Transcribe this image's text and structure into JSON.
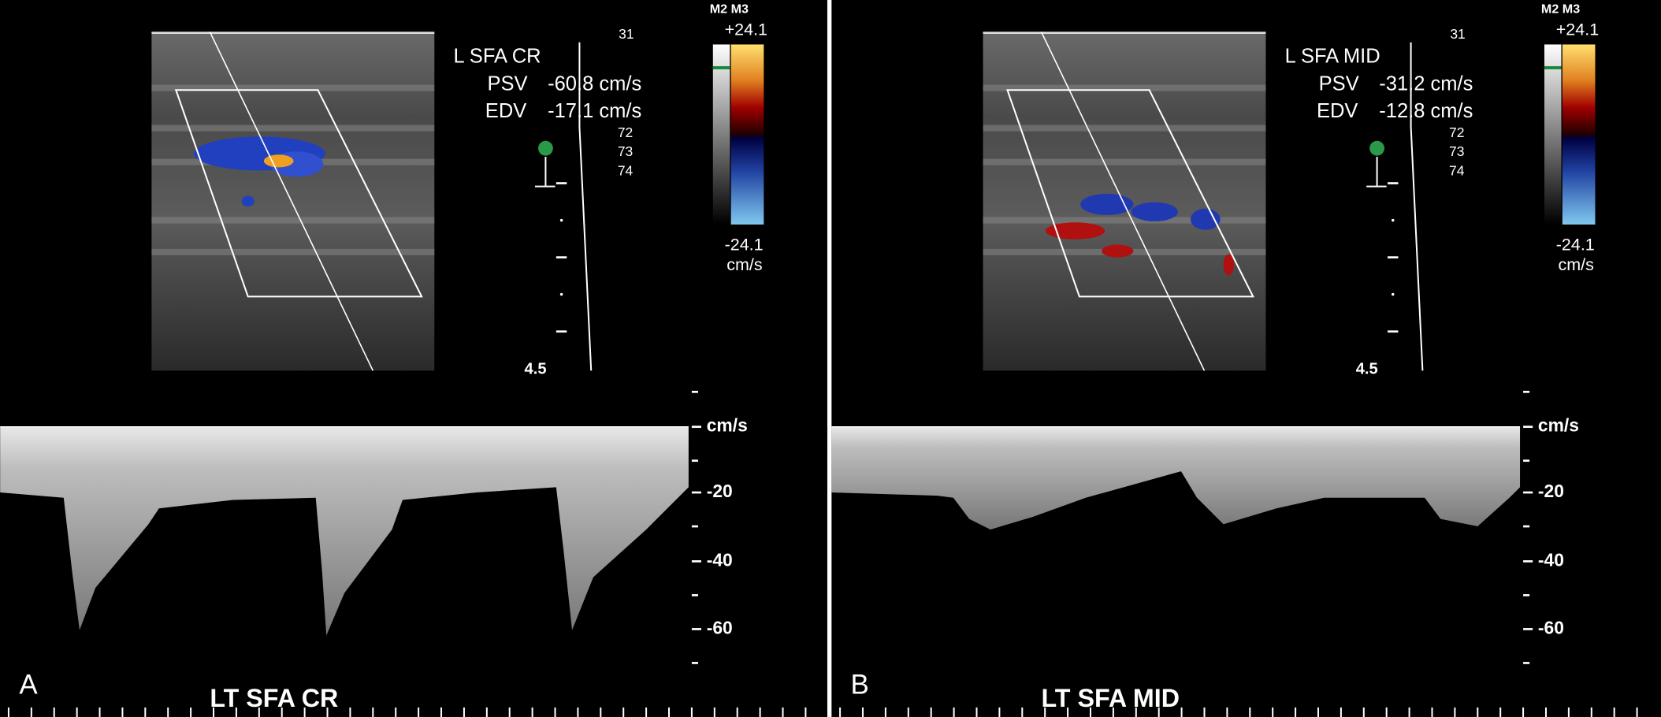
{
  "panels": [
    {
      "label": "A",
      "title": "LT SFA CR",
      "site": "L SFA CR",
      "psv_label": "PSV",
      "psv": "-60.8 cm/s",
      "edv_label": "EDV",
      "edv": "-17.1 cm/s",
      "modes": "M2 M3",
      "scale_top": "+24.1",
      "scale_bottom": "-24.1",
      "scale_unit": "cm/s",
      "frame": "31",
      "depth_marks": [
        "72",
        "73",
        "74"
      ],
      "depth": "4.5",
      "velocity_labels": [
        "cm/s",
        "-20",
        "-40",
        "-60"
      ]
    },
    {
      "label": "B",
      "title": "LT SFA MID",
      "site": "L SFA MID",
      "psv_label": "PSV",
      "psv": "-31.2 cm/s",
      "edv_label": "EDV",
      "edv": "-12.8 cm/s",
      "modes": "M2 M3",
      "scale_top": "+24.1",
      "scale_bottom": "-24.1",
      "scale_unit": "cm/s",
      "frame": "31",
      "depth_marks": [
        "72",
        "73",
        "74"
      ],
      "depth": "4.5",
      "velocity_labels": [
        "cm/s",
        "-20",
        "-40",
        "-60"
      ]
    }
  ]
}
